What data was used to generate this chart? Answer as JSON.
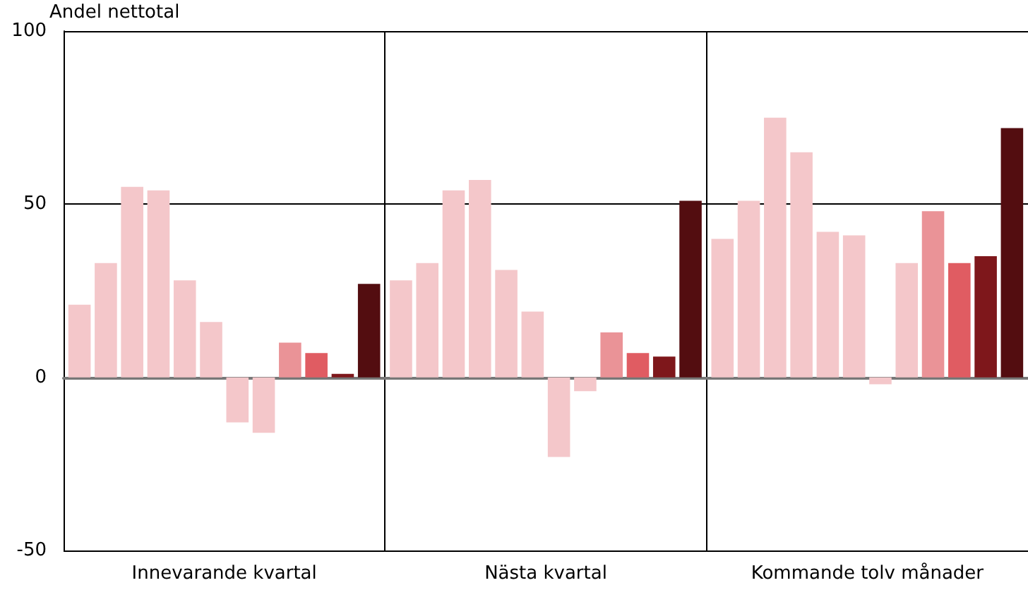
{
  "chart_data": {
    "type": "bar",
    "ylabel": "Andel nettotal",
    "categories": [
      "Innevarande kvartal",
      "Nästa kvartal",
      "Kommande tolv månader"
    ],
    "series": [
      {
        "color": "#f4c7ca",
        "values": [
          21,
          28,
          40
        ]
      },
      {
        "color": "#f4c7ca",
        "values": [
          33,
          33,
          51
        ]
      },
      {
        "color": "#f4c7ca",
        "values": [
          55,
          54,
          75
        ]
      },
      {
        "color": "#f4c7ca",
        "values": [
          54,
          57,
          65
        ]
      },
      {
        "color": "#f4c7ca",
        "values": [
          28,
          31,
          42
        ]
      },
      {
        "color": "#f4c7ca",
        "values": [
          16,
          19,
          41
        ]
      },
      {
        "color": "#f4c7ca",
        "values": [
          -13,
          -23,
          -2
        ]
      },
      {
        "color": "#f4c7ca",
        "values": [
          -16,
          -4,
          33
        ]
      },
      {
        "color": "#ea9397",
        "values": [
          10,
          13,
          48
        ]
      },
      {
        "color": "#e05c62",
        "values": [
          7,
          7,
          33
        ]
      },
      {
        "color": "#7e171b",
        "values": [
          1,
          6,
          35
        ]
      },
      {
        "color": "#530d10",
        "values": [
          27,
          51,
          72
        ]
      }
    ],
    "ylim": [
      -50,
      100
    ],
    "yticks": [
      -50,
      0,
      50,
      100
    ],
    "grid": true
  }
}
